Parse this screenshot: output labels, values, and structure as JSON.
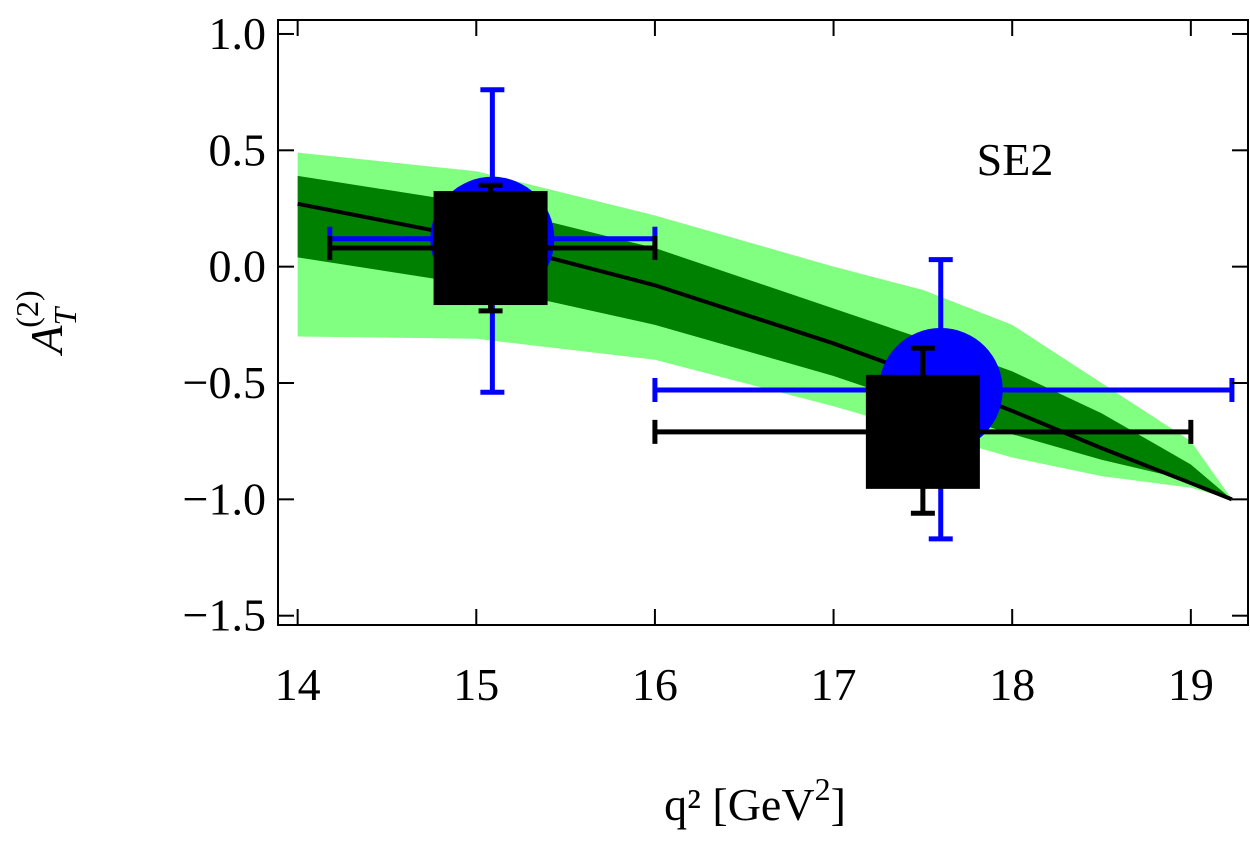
{
  "chart_data": {
    "type": "band-errorbar",
    "annotation": "SE2",
    "y_label": "A",
    "y_label_sub": "T",
    "y_label_sup": "(2)",
    "x_label": "q²  [GeV",
    "x_label_sup": "2",
    "x_label_end": "]",
    "xlim": [
      13.89,
      19.32
    ],
    "ylim": [
      -1.54,
      1.06
    ],
    "xticks": [
      14,
      15,
      16,
      17,
      18,
      19
    ],
    "yticks": [
      {
        "value": 1.0,
        "label": "1.0"
      },
      {
        "value": 0.5,
        "label": "0.5"
      },
      {
        "value": 0.0,
        "label": "0.0"
      },
      {
        "value": -0.5,
        "label": "−0.5"
      },
      {
        "value": -1.0,
        "label": "−1.0"
      },
      {
        "value": -1.5,
        "label": "−1.5"
      }
    ],
    "bands": [
      {
        "color": "#80ff80",
        "x": [
          14,
          15,
          16,
          17,
          17.5,
          18,
          18.5,
          19,
          19.23
        ],
        "upper": [
          0.49,
          0.41,
          0.22,
          0.0,
          -0.1,
          -0.25,
          -0.5,
          -0.75,
          -1.0
        ],
        "lower": [
          -0.3,
          -0.31,
          -0.4,
          -0.6,
          -0.71,
          -0.82,
          -0.9,
          -0.95,
          -1.0
        ]
      },
      {
        "color": "#008000",
        "x": [
          14,
          15,
          16,
          17,
          17.5,
          18,
          18.5,
          19,
          19.23
        ],
        "upper": [
          0.39,
          0.27,
          0.08,
          -0.18,
          -0.31,
          -0.45,
          -0.63,
          -0.85,
          -1.0
        ],
        "lower": [
          0.04,
          -0.08,
          -0.25,
          -0.47,
          -0.6,
          -0.72,
          -0.83,
          -0.92,
          -1.0
        ]
      }
    ],
    "line": {
      "color": "#000000",
      "x": [
        14,
        15,
        16,
        17,
        17.5,
        18,
        18.5,
        19,
        19.23
      ],
      "y": [
        0.27,
        0.12,
        -0.08,
        -0.33,
        -0.47,
        -0.62,
        -0.78,
        -0.93,
        -1.0
      ]
    },
    "points": [
      {
        "marker": "circle",
        "color": "#0000ff",
        "x": 15.09,
        "y": 0.12,
        "x_low": 14.18,
        "x_high": 16.0,
        "y_low": -0.54,
        "y_high": 0.76
      },
      {
        "marker": "circle",
        "color": "#0000ff",
        "x": 17.6,
        "y": -0.53,
        "x_low": 16.0,
        "x_high": 19.23,
        "y_low": -1.17,
        "y_high": 0.03
      },
      {
        "marker": "square",
        "color": "#000000",
        "x": 15.08,
        "y": 0.08,
        "x_low": 14.18,
        "x_high": 16.0,
        "y_low": -0.19,
        "y_high": 0.35
      },
      {
        "marker": "square",
        "color": "#000000",
        "x": 17.5,
        "y": -0.71,
        "x_low": 16.0,
        "x_high": 19.0,
        "y_low": -1.06,
        "y_high": -0.35
      }
    ]
  }
}
